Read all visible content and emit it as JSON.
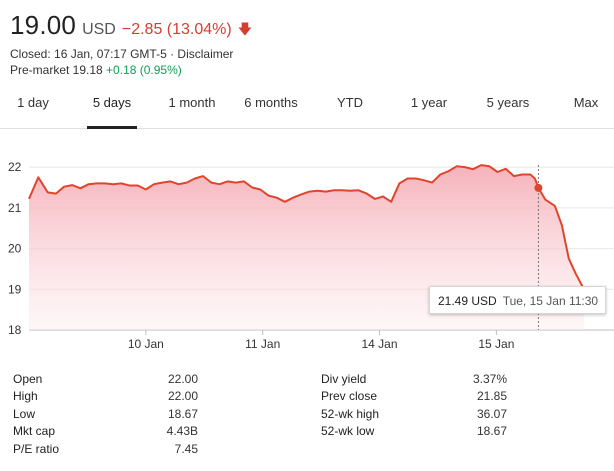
{
  "header": {
    "price": "19.00",
    "currency": "USD",
    "change": "−2.85 (13.04%)",
    "arrow_icon": "arrow-down-icon",
    "closed_text": "Closed: 16 Jan, 07:17 GMT-5 · ",
    "disclaimer": "Disclaimer",
    "premarket_label": "Pre-market 19.18 ",
    "premarket_change": "+0.18 (0.95%)"
  },
  "colors": {
    "negative": "#d23f31",
    "positive": "#0f9d58",
    "line": "#e0452c",
    "fill": "#f7c6cc"
  },
  "tabs": [
    "1 day",
    "5 days",
    "1 month",
    "6 months",
    "YTD",
    "1 year",
    "5 years",
    "Max"
  ],
  "active_tab": "5 days",
  "tooltip": {
    "price": "21.49 USD",
    "date": "Tue, 15 Jan 11:30"
  },
  "stats": {
    "left": [
      {
        "label": "Open",
        "value": "22.00"
      },
      {
        "label": "High",
        "value": "22.00"
      },
      {
        "label": "Low",
        "value": "18.67"
      },
      {
        "label": "Mkt cap",
        "value": "4.43B"
      },
      {
        "label": "P/E ratio",
        "value": "7.45"
      }
    ],
    "right": [
      {
        "label": "Div yield",
        "value": "3.37%"
      },
      {
        "label": "Prev close",
        "value": "21.85"
      },
      {
        "label": "52-wk high",
        "value": "36.07"
      },
      {
        "label": "52-wk low",
        "value": "18.67"
      }
    ]
  },
  "chart_data": {
    "type": "area",
    "ylim": [
      18,
      22.2
    ],
    "yticks": [
      18,
      19,
      20,
      21,
      22
    ],
    "xticks": [
      {
        "label": "10 Jan",
        "x": 1.0
      },
      {
        "label": "11 Jan",
        "x": 2.0
      },
      {
        "label": "14 Jan",
        "x": 3.0
      },
      {
        "label": "15 Jan",
        "x": 4.0
      }
    ],
    "xlim": [
      0.0,
      4.75
    ],
    "grid": true,
    "series": [
      {
        "values": [
          [
            0.0,
            21.22
          ],
          [
            0.08,
            21.75
          ],
          [
            0.16,
            21.38
          ],
          [
            0.23,
            21.35
          ],
          [
            0.3,
            21.52
          ],
          [
            0.37,
            21.56
          ],
          [
            0.44,
            21.48
          ],
          [
            0.51,
            21.58
          ],
          [
            0.58,
            21.6
          ],
          [
            0.65,
            21.6
          ],
          [
            0.72,
            21.58
          ],
          [
            0.79,
            21.6
          ],
          [
            0.86,
            21.55
          ],
          [
            0.93,
            21.55
          ],
          [
            1.0,
            21.45
          ],
          [
            1.07,
            21.58
          ],
          [
            1.14,
            21.62
          ],
          [
            1.21,
            21.65
          ],
          [
            1.28,
            21.58
          ],
          [
            1.35,
            21.62
          ],
          [
            1.42,
            21.72
          ],
          [
            1.49,
            21.78
          ],
          [
            1.56,
            21.62
          ],
          [
            1.63,
            21.58
          ],
          [
            1.7,
            21.65
          ],
          [
            1.77,
            21.62
          ],
          [
            1.84,
            21.65
          ],
          [
            1.91,
            21.5
          ],
          [
            1.98,
            21.45
          ],
          [
            2.05,
            21.3
          ],
          [
            2.12,
            21.25
          ],
          [
            2.19,
            21.15
          ],
          [
            2.26,
            21.25
          ],
          [
            2.33,
            21.33
          ],
          [
            2.4,
            21.4
          ],
          [
            2.47,
            21.42
          ],
          [
            2.54,
            21.4
          ],
          [
            2.61,
            21.43
          ],
          [
            2.68,
            21.43
          ],
          [
            2.75,
            21.42
          ],
          [
            2.82,
            21.43
          ],
          [
            2.89,
            21.35
          ],
          [
            2.96,
            21.22
          ],
          [
            3.03,
            21.28
          ],
          [
            3.1,
            21.15
          ],
          [
            3.17,
            21.6
          ],
          [
            3.24,
            21.72
          ],
          [
            3.31,
            21.72
          ],
          [
            3.38,
            21.68
          ],
          [
            3.45,
            21.62
          ],
          [
            3.52,
            21.82
          ],
          [
            3.59,
            21.9
          ],
          [
            3.66,
            22.02
          ],
          [
            3.73,
            22.0
          ],
          [
            3.8,
            21.95
          ],
          [
            3.87,
            22.05
          ],
          [
            3.94,
            22.02
          ],
          [
            4.01,
            21.88
          ],
          [
            4.08,
            21.96
          ],
          [
            4.15,
            21.78
          ],
          [
            4.22,
            21.82
          ],
          [
            4.29,
            21.82
          ],
          [
            4.33,
            21.72
          ],
          [
            4.36,
            21.49
          ],
          [
            4.42,
            21.2
          ],
          [
            4.5,
            21.05
          ],
          [
            4.56,
            20.58
          ],
          [
            4.62,
            19.75
          ],
          [
            4.68,
            19.38
          ],
          [
            4.75,
            19.0
          ]
        ]
      }
    ],
    "highlight_point": [
      4.36,
      21.49
    ]
  }
}
